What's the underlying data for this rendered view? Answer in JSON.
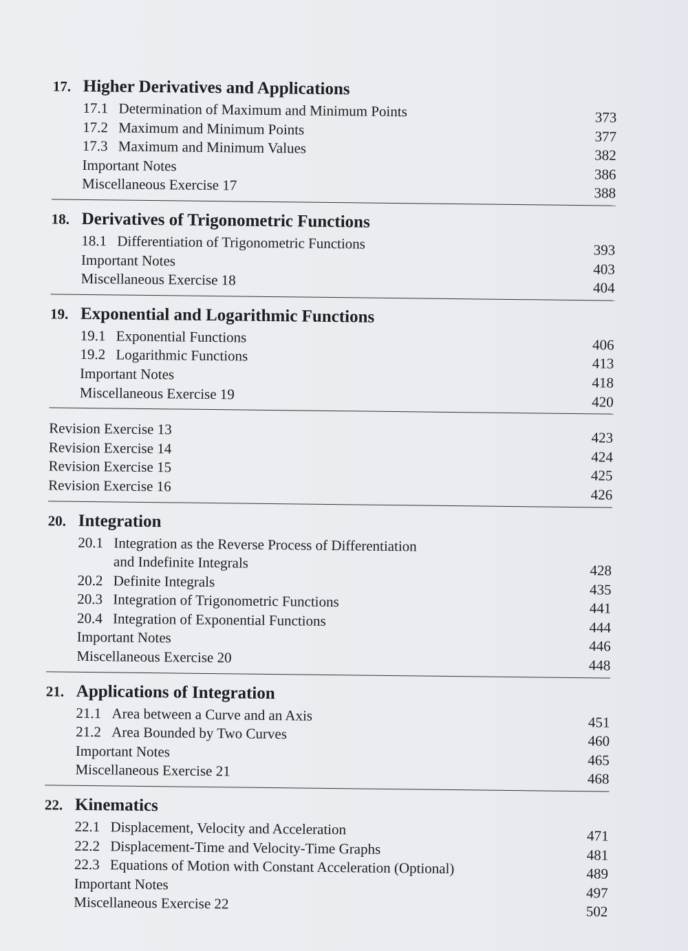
{
  "chapters": [
    {
      "number": "17.",
      "title": "Higher Derivatives and Applications",
      "entries": [
        {
          "num": "17.1",
          "text": "Determination of Maximum and Minimum Points",
          "page": "373"
        },
        {
          "num": "17.2",
          "text": "Maximum and Minimum Points",
          "page": "377"
        },
        {
          "num": "17.3",
          "text": "Maximum and Minimum Values",
          "page": "382"
        },
        {
          "num": "",
          "text": "Important Notes",
          "page": "386"
        },
        {
          "num": "",
          "text": "Miscellaneous Exercise 17",
          "page": "388"
        }
      ]
    },
    {
      "number": "18.",
      "title": "Derivatives of Trigonometric Functions",
      "entries": [
        {
          "num": "18.1",
          "text": "Differentiation of Trigonometric Functions",
          "page": "393"
        },
        {
          "num": "",
          "text": "Important Notes",
          "page": "403"
        },
        {
          "num": "",
          "text": "Miscellaneous Exercise 18",
          "page": "404"
        }
      ]
    },
    {
      "number": "19.",
      "title": "Exponential and Logarithmic Functions",
      "entries": [
        {
          "num": "19.1",
          "text": "Exponential Functions",
          "page": "406"
        },
        {
          "num": "19.2",
          "text": "Logarithmic Functions",
          "page": "413"
        },
        {
          "num": "",
          "text": "Important Notes",
          "page": "418"
        },
        {
          "num": "",
          "text": "Miscellaneous Exercise 19",
          "page": "420"
        }
      ]
    },
    {
      "number": "",
      "title": "",
      "revision": true,
      "entries": [
        {
          "num": "",
          "text": "Revision Exercise 13",
          "page": "423"
        },
        {
          "num": "",
          "text": "Revision Exercise 14",
          "page": "424"
        },
        {
          "num": "",
          "text": "Revision Exercise 15",
          "page": "425"
        },
        {
          "num": "",
          "text": "Revision Exercise 16",
          "page": "426"
        }
      ]
    },
    {
      "number": "20.",
      "title": "Integration",
      "entries": [
        {
          "num": "20.1",
          "text": "Integration as the Reverse Process of Differentiation",
          "page": ""
        },
        {
          "num": "",
          "text": "and Indefinite Integrals",
          "page": "428",
          "cont": true
        },
        {
          "num": "20.2",
          "text": "Definite Integrals",
          "page": "435"
        },
        {
          "num": "20.3",
          "text": "Integration of Trigonometric Functions",
          "page": "441"
        },
        {
          "num": "20.4",
          "text": "Integration of Exponential Functions",
          "page": "444"
        },
        {
          "num": "",
          "text": "Important Notes",
          "page": "446"
        },
        {
          "num": "",
          "text": "Miscellaneous Exercise 20",
          "page": "448"
        }
      ]
    },
    {
      "number": "21.",
      "title": "Applications of Integration",
      "entries": [
        {
          "num": "21.1",
          "text": "Area  between  a Curve and an Axis",
          "page": "451"
        },
        {
          "num": "21.2",
          "text": "Area Bounded by Two Curves",
          "page": "460"
        },
        {
          "num": "",
          "text": "Important Notes",
          "page": "465"
        },
        {
          "num": "",
          "text": "Miscellaneous Exercise 21",
          "page": "468"
        }
      ]
    },
    {
      "number": "22.",
      "title": "Kinematics",
      "entries": [
        {
          "num": "22.1",
          "text": "Displacement, Velocity and Acceleration",
          "page": "471"
        },
        {
          "num": "22.2",
          "text": "Displacement-Time and Velocity-Time Graphs",
          "page": "481"
        },
        {
          "num": "22.3",
          "text": "Equations of Motion with Constant Acceleration (Optional)",
          "page": "489"
        },
        {
          "num": "",
          "text": "Important Notes",
          "page": "497"
        },
        {
          "num": "",
          "text": "Miscellaneous Exercise 22",
          "page": "502"
        }
      ]
    }
  ]
}
